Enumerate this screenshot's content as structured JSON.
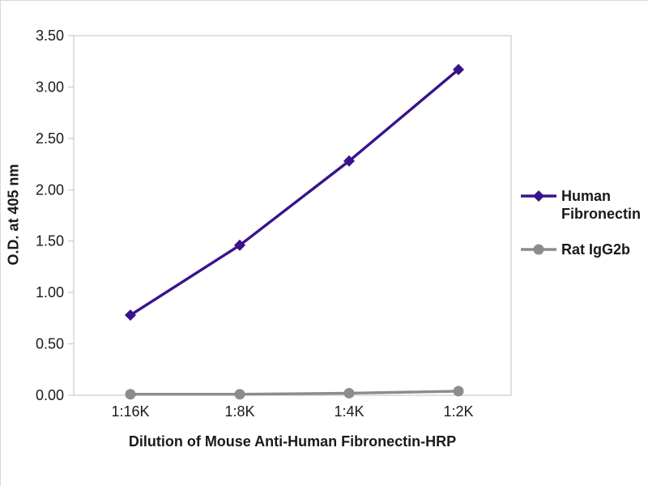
{
  "chart_data": {
    "type": "line",
    "title": "",
    "xlabel": "Dilution of Mouse Anti-Human Fibronectin-HRP",
    "ylabel": "O.D. at 405 nm",
    "categories": [
      "1:16K",
      "1:8K",
      "1:4K",
      "1:2K"
    ],
    "series": [
      {
        "name": "Human Fibronectin",
        "values": [
          0.78,
          1.46,
          2.28,
          3.17
        ],
        "color": "#39128c",
        "marker": "diamond"
      },
      {
        "name": "Rat IgG2b",
        "values": [
          0.01,
          0.01,
          0.02,
          0.04
        ],
        "color": "#8c8c8c",
        "marker": "circle"
      }
    ],
    "ylim": [
      0,
      3.5
    ],
    "ytick_step": 0.5,
    "ytick_decimals": 2,
    "grid": false,
    "legend_position": "right",
    "axis_color": "#c2c2c2",
    "text_color": "#1a1a1a"
  }
}
